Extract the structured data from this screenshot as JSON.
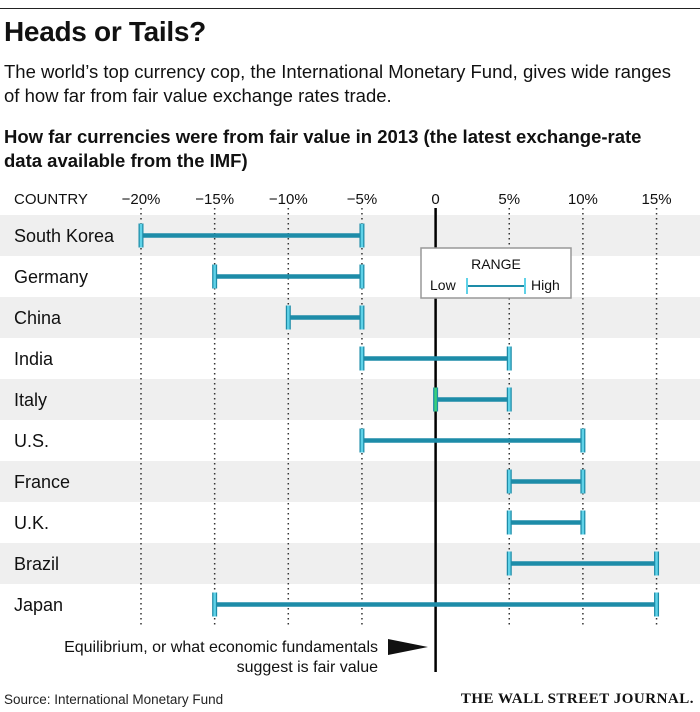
{
  "header": {
    "title": "Heads or Tails?",
    "subtitle": "The world’s top currency cop, the International Monetary Fund, gives wide ranges of how far from fair value exchange rates trade."
  },
  "footer": {
    "source": "Source: International Monetary Fund",
    "logo": "THE WALL STREET JOURNAL."
  },
  "colors": {
    "range": "#1d8ca8",
    "cap": "#5fd2e8",
    "equilibrium_marker": "#3ad07a",
    "row_shade": "#efefef",
    "axis": "#000000"
  },
  "chart_data": {
    "type": "range",
    "title": "How far currencies were from fair value in 2013 (the latest exchange-rate data available from the IMF)",
    "category_header": "COUNTRY",
    "x_ticks": [
      -20,
      -15,
      -10,
      -5,
      0,
      5,
      10,
      15
    ],
    "x_tick_labels": [
      "−20%",
      "−15%",
      "−10%",
      "−5%",
      "0",
      "5%",
      "10%",
      "15%"
    ],
    "xlim": [
      -20,
      15
    ],
    "grid": "vertical dotted",
    "legend": {
      "position": "top-right",
      "title": "RANGE",
      "low_label": "Low",
      "high_label": "High"
    },
    "series": [
      {
        "category": "South Korea",
        "low": -20,
        "high": -5
      },
      {
        "category": "Germany",
        "low": -15,
        "high": -5
      },
      {
        "category": "China",
        "low": -10,
        "high": -5
      },
      {
        "category": "India",
        "low": -5,
        "high": 5
      },
      {
        "category": "Italy",
        "low": 0,
        "high": 5
      },
      {
        "category": "U.S.",
        "low": -5,
        "high": 10
      },
      {
        "category": "France",
        "low": 5,
        "high": 10
      },
      {
        "category": "U.K.",
        "low": 5,
        "high": 10
      },
      {
        "category": "Brazil",
        "low": 5,
        "high": 15
      },
      {
        "category": "Japan",
        "low": -15,
        "high": 15
      }
    ],
    "annotation": "Equilibrium, or what economic fundamentals suggest is fair value"
  }
}
